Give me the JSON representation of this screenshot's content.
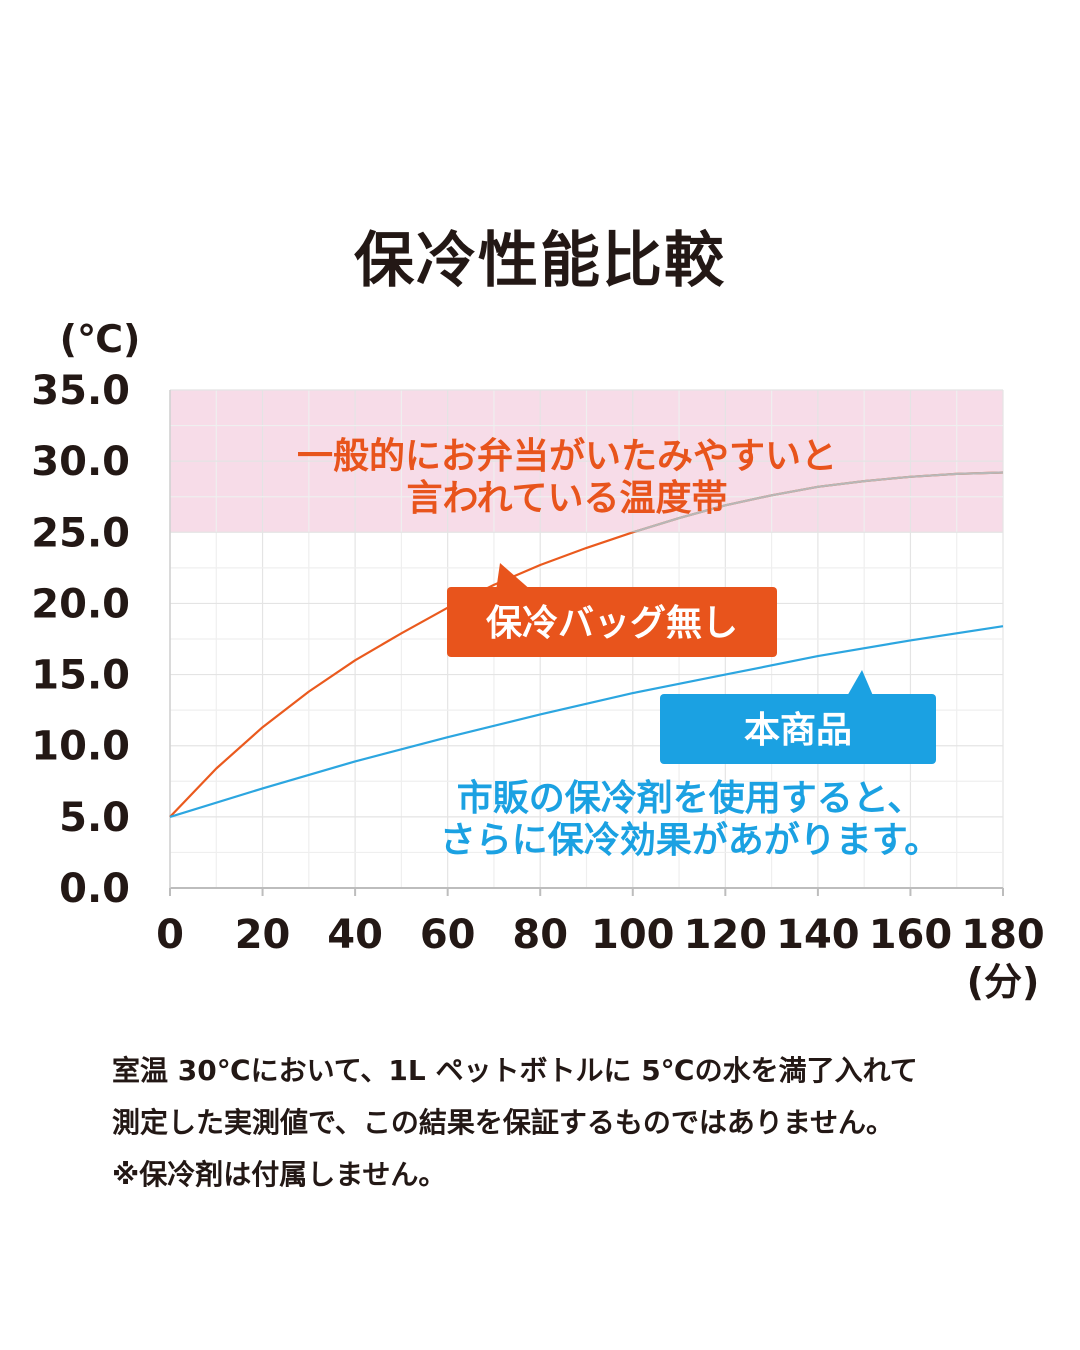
{
  "title": "保冷性能比較",
  "chart_data": {
    "type": "line",
    "ylabel": "(℃)",
    "xlabel": "(分)",
    "xlim": [
      0,
      180
    ],
    "ylim": [
      0,
      35
    ],
    "x_ticks": [
      "0",
      "20",
      "40",
      "60",
      "80",
      "100",
      "120",
      "140",
      "160",
      "180"
    ],
    "y_ticks": [
      "0.0",
      "5.0",
      "10.0",
      "15.0",
      "20.0",
      "25.0",
      "30.0",
      "35.0"
    ],
    "grid": true,
    "band": {
      "y_range": [
        25,
        35
      ],
      "label_lines": [
        "一般的にお弁当がいたみやすいと",
        "言われている温度帯"
      ],
      "color": "#f7dce8",
      "label_color": "#e8541c"
    },
    "series": [
      {
        "name": "保冷バッグ無し",
        "color": "#ea5a1e",
        "x": [
          0,
          10,
          20,
          30,
          40,
          50,
          60,
          70,
          80,
          90,
          100,
          110,
          120,
          130,
          140,
          150,
          160,
          170,
          180
        ],
        "values": [
          5.0,
          8.4,
          11.3,
          13.8,
          16.0,
          17.9,
          19.7,
          21.3,
          22.7,
          23.9,
          25.0,
          26.0,
          26.9,
          27.6,
          28.2,
          28.6,
          28.9,
          29.1,
          29.2
        ]
      },
      {
        "name": "本商品",
        "color": "#2ca6e0",
        "x": [
          0,
          20,
          40,
          60,
          80,
          100,
          120,
          140,
          160,
          180
        ],
        "values": [
          5.0,
          7.0,
          8.9,
          10.6,
          12.2,
          13.7,
          15.0,
          16.3,
          17.4,
          18.4
        ]
      }
    ],
    "callouts": [
      {
        "label": "保冷バッグ無し",
        "color": "#e8541c"
      },
      {
        "label": "本商品",
        "color": "#1ba1e2"
      }
    ],
    "annotation_lines": [
      "市販の保冷剤を使用すると、",
      "さらに保冷効果があがります。"
    ],
    "annotation_color": "#1ba1e2"
  },
  "notes": [
    "室温 30℃において、1L ペットボトルに 5℃の水を満了入れて",
    "測定した実測値で、この結果を保証するものではありません。",
    "※保冷剤は付属しません。"
  ]
}
